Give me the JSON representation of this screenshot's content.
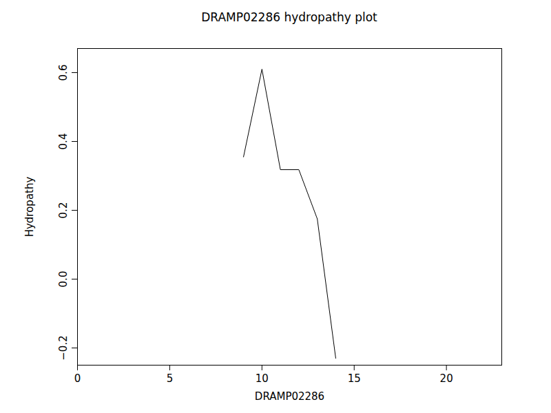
{
  "chart_data": {
    "type": "line",
    "title": "DRAMP02286 hydropathy plot",
    "x_label": "DRAMP02286",
    "y_label": "Hydropathy",
    "x": [
      9,
      10,
      11,
      12,
      13,
      14
    ],
    "values": [
      0.355,
      0.61,
      0.318,
      0.318,
      0.175,
      -0.23
    ],
    "color": "#000000",
    "xlim": [
      0,
      23
    ],
    "xticks": [
      0,
      5,
      10,
      15,
      20
    ],
    "ylim": [
      -0.25,
      0.67
    ],
    "yticks": [
      {
        "value": -0.2,
        "label": "−0.2"
      },
      {
        "value": 0,
        "label": "0.0"
      },
      {
        "value": 0.2,
        "label": "0.2"
      },
      {
        "value": 0.4,
        "label": "0.4"
      },
      {
        "value": 0.6,
        "label": "0.6"
      }
    ],
    "grid": false
  }
}
